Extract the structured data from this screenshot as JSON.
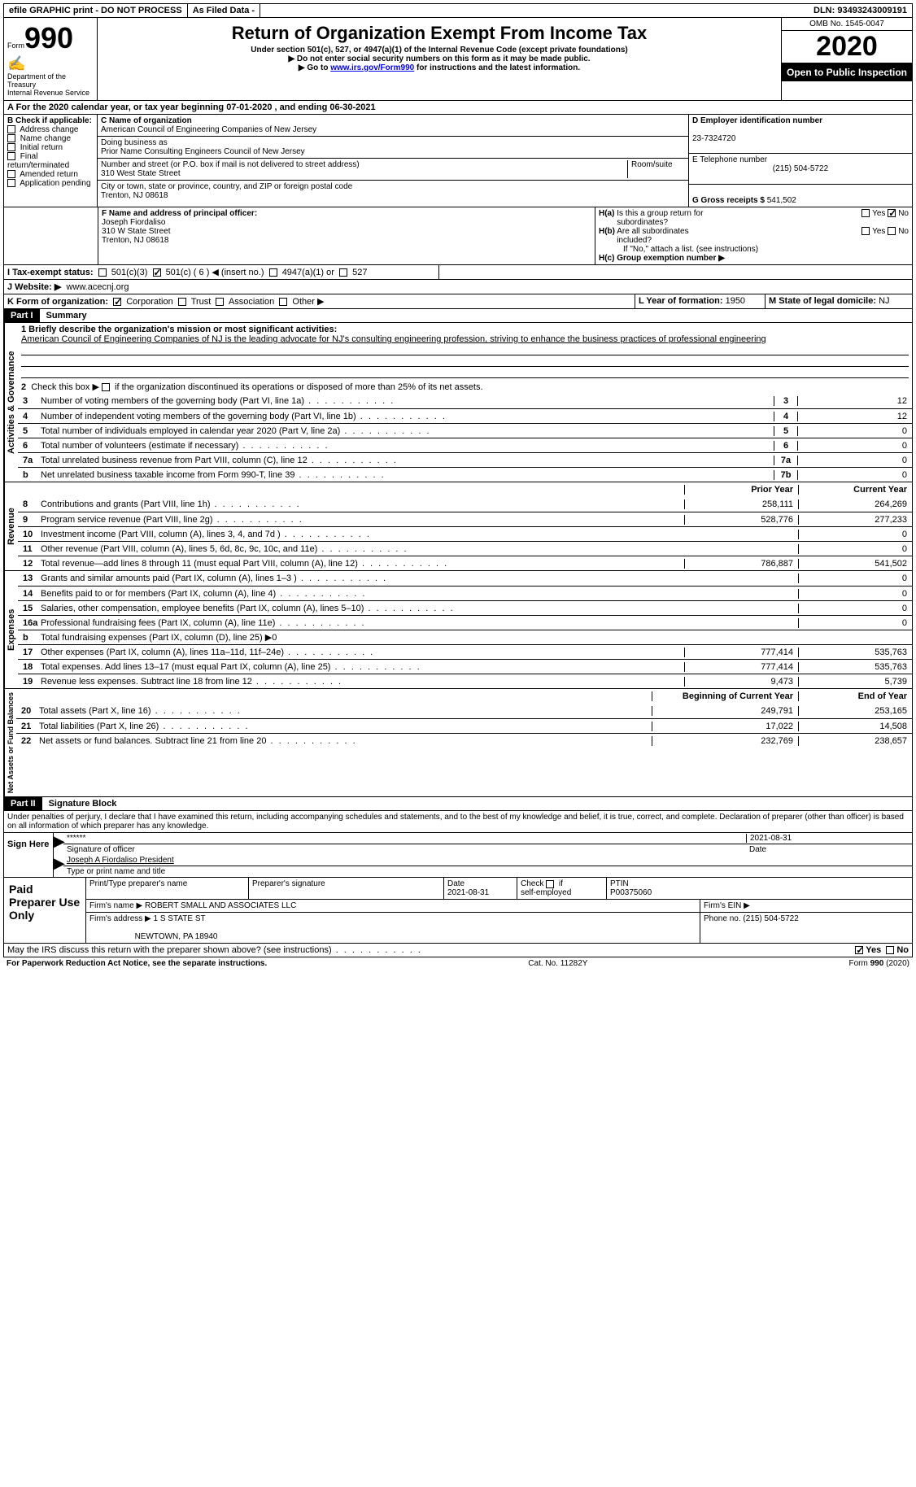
{
  "topbar": {
    "efile": "efile GRAPHIC print - DO NOT PROCESS",
    "asfiled": "As Filed Data -",
    "dln_label": "DLN:",
    "dln": "93493243009191"
  },
  "header": {
    "form_label": "Form",
    "form_no": "990",
    "dept": "Department of the Treasury\nInternal Revenue Service",
    "title": "Return of Organization Exempt From Income Tax",
    "sub1": "Under section 501(c), 527, or 4947(a)(1) of the Internal Revenue Code (except private foundations)",
    "sub2": "▶ Do not enter social security numbers on this form as it may be made public.",
    "sub3_pre": "▶ Go to ",
    "sub3_link": "www.irs.gov/Form990",
    "sub3_post": " for instructions and the latest information.",
    "omb": "OMB No. 1545-0047",
    "year": "2020",
    "open": "Open to Public Inspection"
  },
  "section_a": "A  For the 2020 calendar year, or tax year beginning 07-01-2020  , and ending 06-30-2021",
  "col_b": {
    "label": "B Check if applicable:",
    "items": [
      "Address change",
      "Name change",
      "Initial return",
      "Final return/terminated",
      "Amended return",
      "Application pending"
    ]
  },
  "col_c": {
    "name_label": "C Name of organization",
    "name": "American Council of Engineering Companies of New Jersey",
    "dba_label": "Doing business as",
    "dba": "Prior Name Consulting Engineers Council of New Jersey",
    "addr_label": "Number and street (or P.O. box if mail is not delivered to street address)",
    "room_label": "Room/suite",
    "addr": "310 West State Street",
    "city_label": "City or town, state or province, country, and ZIP or foreign postal code",
    "city": "Trenton, NJ  08618"
  },
  "col_d": {
    "label": "D Employer identification number",
    "val": "23-7324720"
  },
  "col_e": {
    "label": "E Telephone number",
    "val": "(215) 504-5722"
  },
  "col_g": {
    "label": "G Gross receipts $",
    "val": "541,502"
  },
  "col_f": {
    "label": "F  Name and address of principal officer:",
    "name": "Joseph Fiordaliso",
    "addr1": "310 W State Street",
    "addr2": "Trenton, NJ  08618"
  },
  "col_h": {
    "a": "H(a)  Is this a group return for subordinates?",
    "b": "H(b)  Are all subordinates included?",
    "note": "If \"No,\" attach a list. (see instructions)",
    "c": "H(c)  Group exemption number ▶",
    "yes": "Yes",
    "no": "No"
  },
  "row_i": {
    "label": "I  Tax-exempt status:",
    "opts": [
      "501(c)(3)",
      "501(c) ( 6 ) ◀ (insert no.)",
      "4947(a)(1) or",
      "527"
    ]
  },
  "row_j": {
    "label": "J  Website: ▶",
    "val": "www.acecnj.org"
  },
  "row_k": {
    "label": "K Form of organization:",
    "opts": [
      "Corporation",
      "Trust",
      "Association",
      "Other ▶"
    ]
  },
  "row_l": {
    "label": "L Year of formation:",
    "val": "1950"
  },
  "row_m": {
    "label": "M State of legal domicile:",
    "val": "NJ"
  },
  "part1": {
    "tab": "Part I",
    "title": "Summary"
  },
  "gov": {
    "label": "Activities & Governance",
    "l1": "1 Briefly describe the organization's mission or most significant activities:",
    "mission": "American Council of Engineering Companies of NJ is the leading advocate for NJ's consulting engineering profession, striving to enhance the business practices of professional engineering",
    "l2": "2  Check this box ▶          if the organization discontinued its operations or disposed of more than 25% of its net assets.",
    "lines": [
      {
        "n": "3",
        "d": "Number of voting members of the governing body (Part VI, line 1a)",
        "k": "3",
        "v": "12"
      },
      {
        "n": "4",
        "d": "Number of independent voting members of the governing body (Part VI, line 1b)",
        "k": "4",
        "v": "12"
      },
      {
        "n": "5",
        "d": "Total number of individuals employed in calendar year 2020 (Part V, line 2a)",
        "k": "5",
        "v": "0"
      },
      {
        "n": "6",
        "d": "Total number of volunteers (estimate if necessary)",
        "k": "6",
        "v": "0"
      },
      {
        "n": "7a",
        "d": "Total unrelated business revenue from Part VIII, column (C), line 12",
        "k": "7a",
        "v": "0"
      },
      {
        "n": "b",
        "d": "Net unrelated business taxable income from Form 990-T, line 39",
        "k": "7b",
        "v": "0"
      }
    ]
  },
  "rev": {
    "label": "Revenue",
    "hdr_prior": "Prior Year",
    "hdr_curr": "Current Year",
    "lines": [
      {
        "n": "8",
        "d": "Contributions and grants (Part VIII, line 1h)",
        "p": "258,111",
        "c": "264,269"
      },
      {
        "n": "9",
        "d": "Program service revenue (Part VIII, line 2g)",
        "p": "528,776",
        "c": "277,233"
      },
      {
        "n": "10",
        "d": "Investment income (Part VIII, column (A), lines 3, 4, and 7d )",
        "p": "",
        "c": "0"
      },
      {
        "n": "11",
        "d": "Other revenue (Part VIII, column (A), lines 5, 6d, 8c, 9c, 10c, and 11e)",
        "p": "",
        "c": "0"
      },
      {
        "n": "12",
        "d": "Total revenue—add lines 8 through 11 (must equal Part VIII, column (A), line 12)",
        "p": "786,887",
        "c": "541,502"
      }
    ]
  },
  "exp": {
    "label": "Expenses",
    "lines": [
      {
        "n": "13",
        "d": "Grants and similar amounts paid (Part IX, column (A), lines 1–3 )",
        "p": "",
        "c": "0"
      },
      {
        "n": "14",
        "d": "Benefits paid to or for members (Part IX, column (A), line 4)",
        "p": "",
        "c": "0"
      },
      {
        "n": "15",
        "d": "Salaries, other compensation, employee benefits (Part IX, column (A), lines 5–10)",
        "p": "",
        "c": "0"
      },
      {
        "n": "16a",
        "d": "Professional fundraising fees (Part IX, column (A), line 11e)",
        "p": "",
        "c": "0"
      },
      {
        "n": "b",
        "d": "Total fundraising expenses (Part IX, column (D), line 25) ▶0",
        "p": "shade",
        "c": "shade"
      },
      {
        "n": "17",
        "d": "Other expenses (Part IX, column (A), lines 11a–11d, 11f–24e)",
        "p": "777,414",
        "c": "535,763"
      },
      {
        "n": "18",
        "d": "Total expenses. Add lines 13–17 (must equal Part IX, column (A), line 25)",
        "p": "777,414",
        "c": "535,763"
      },
      {
        "n": "19",
        "d": "Revenue less expenses. Subtract line 18 from line 12",
        "p": "9,473",
        "c": "5,739"
      }
    ]
  },
  "net": {
    "label": "Net Assets or Fund Balances",
    "hdr_beg": "Beginning of Current Year",
    "hdr_end": "End of Year",
    "lines": [
      {
        "n": "20",
        "d": "Total assets (Part X, line 16)",
        "p": "249,791",
        "c": "253,165"
      },
      {
        "n": "21",
        "d": "Total liabilities (Part X, line 26)",
        "p": "17,022",
        "c": "14,508"
      },
      {
        "n": "22",
        "d": "Net assets or fund balances. Subtract line 21 from line 20",
        "p": "232,769",
        "c": "238,657"
      }
    ]
  },
  "part2": {
    "tab": "Part II",
    "title": "Signature Block"
  },
  "perjury": "Under penalties of perjury, I declare that I have examined this return, including accompanying schedules and statements, and to the best of my knowledge and belief, it is true, correct, and complete. Declaration of preparer (other than officer) is based on all information of which preparer has any knowledge.",
  "sign": {
    "label": "Sign Here",
    "stars": "******",
    "sig": "Signature of officer",
    "date": "2021-08-31",
    "date_lbl": "Date",
    "name": "Joseph A Fiordaliso President",
    "name_lbl": "Type or print name and title"
  },
  "paid": {
    "label": "Paid Preparer Use Only",
    "h1": "Print/Type preparer's name",
    "h2": "Preparer's signature",
    "h3": "Date",
    "h3v": "2021-08-31",
    "h4": "Check          if self-employed",
    "h5": "PTIN",
    "h5v": "P00375060",
    "firm_lbl": "Firm's name   ▶",
    "firm": "ROBERT SMALL AND ASSOCIATES LLC",
    "ein_lbl": "Firm's EIN ▶",
    "addr_lbl": "Firm's address ▶",
    "addr": "1 S STATE ST",
    "addr2": "NEWTOWN, PA  18940",
    "phone_lbl": "Phone no.",
    "phone": "(215) 504-5722"
  },
  "discuss": {
    "q": "May the IRS discuss this return with the preparer shown above? (see instructions)",
    "yes": "Yes",
    "no": "No"
  },
  "footer": {
    "l": "For Paperwork Reduction Act Notice, see the separate instructions.",
    "m": "Cat. No. 11282Y",
    "r": "Form 990 (2020)"
  }
}
